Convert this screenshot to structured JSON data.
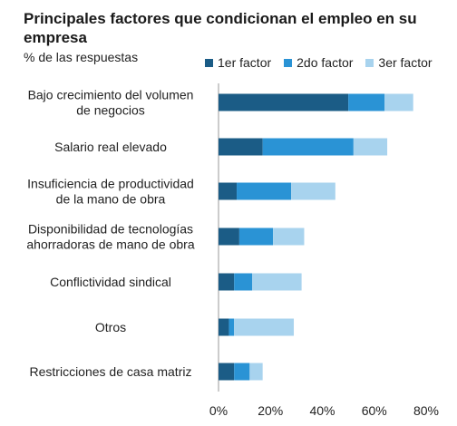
{
  "chart_data": {
    "type": "bar",
    "orientation": "horizontal",
    "stacked": true,
    "title": "Principales factores que condicionan el empleo en su empresa",
    "subtitle": "% de las respuestas",
    "categories": [
      [
        "Bajo crecimiento del volumen",
        "de negocios"
      ],
      [
        "Salario real elevado"
      ],
      [
        "Insuficiencia de productividad",
        "de la mano de obra"
      ],
      [
        "Disponibilidad de tecnologías",
        "ahorradoras de mano de obra"
      ],
      [
        "Conflictividad sindical"
      ],
      [
        "Otros"
      ],
      [
        "Restricciones de casa matriz"
      ]
    ],
    "series": [
      {
        "name": "1er factor",
        "color": "#1b5c86",
        "values": [
          50,
          17,
          7,
          8,
          6,
          4,
          6
        ]
      },
      {
        "name": "2do factor",
        "color": "#2a93d5",
        "values": [
          14,
          35,
          21,
          13,
          7,
          2,
          6
        ]
      },
      {
        "name": "3er factor",
        "color": "#a8d3ee",
        "values": [
          11,
          13,
          17,
          12,
          19,
          23,
          5
        ]
      }
    ],
    "xlim": [
      0,
      80
    ],
    "xticks": [
      "0%",
      "20%",
      "40%",
      "60%",
      "80%"
    ],
    "xtick_values": [
      0,
      20,
      40,
      60,
      80
    ],
    "grid": false,
    "legend": "top-right"
  }
}
